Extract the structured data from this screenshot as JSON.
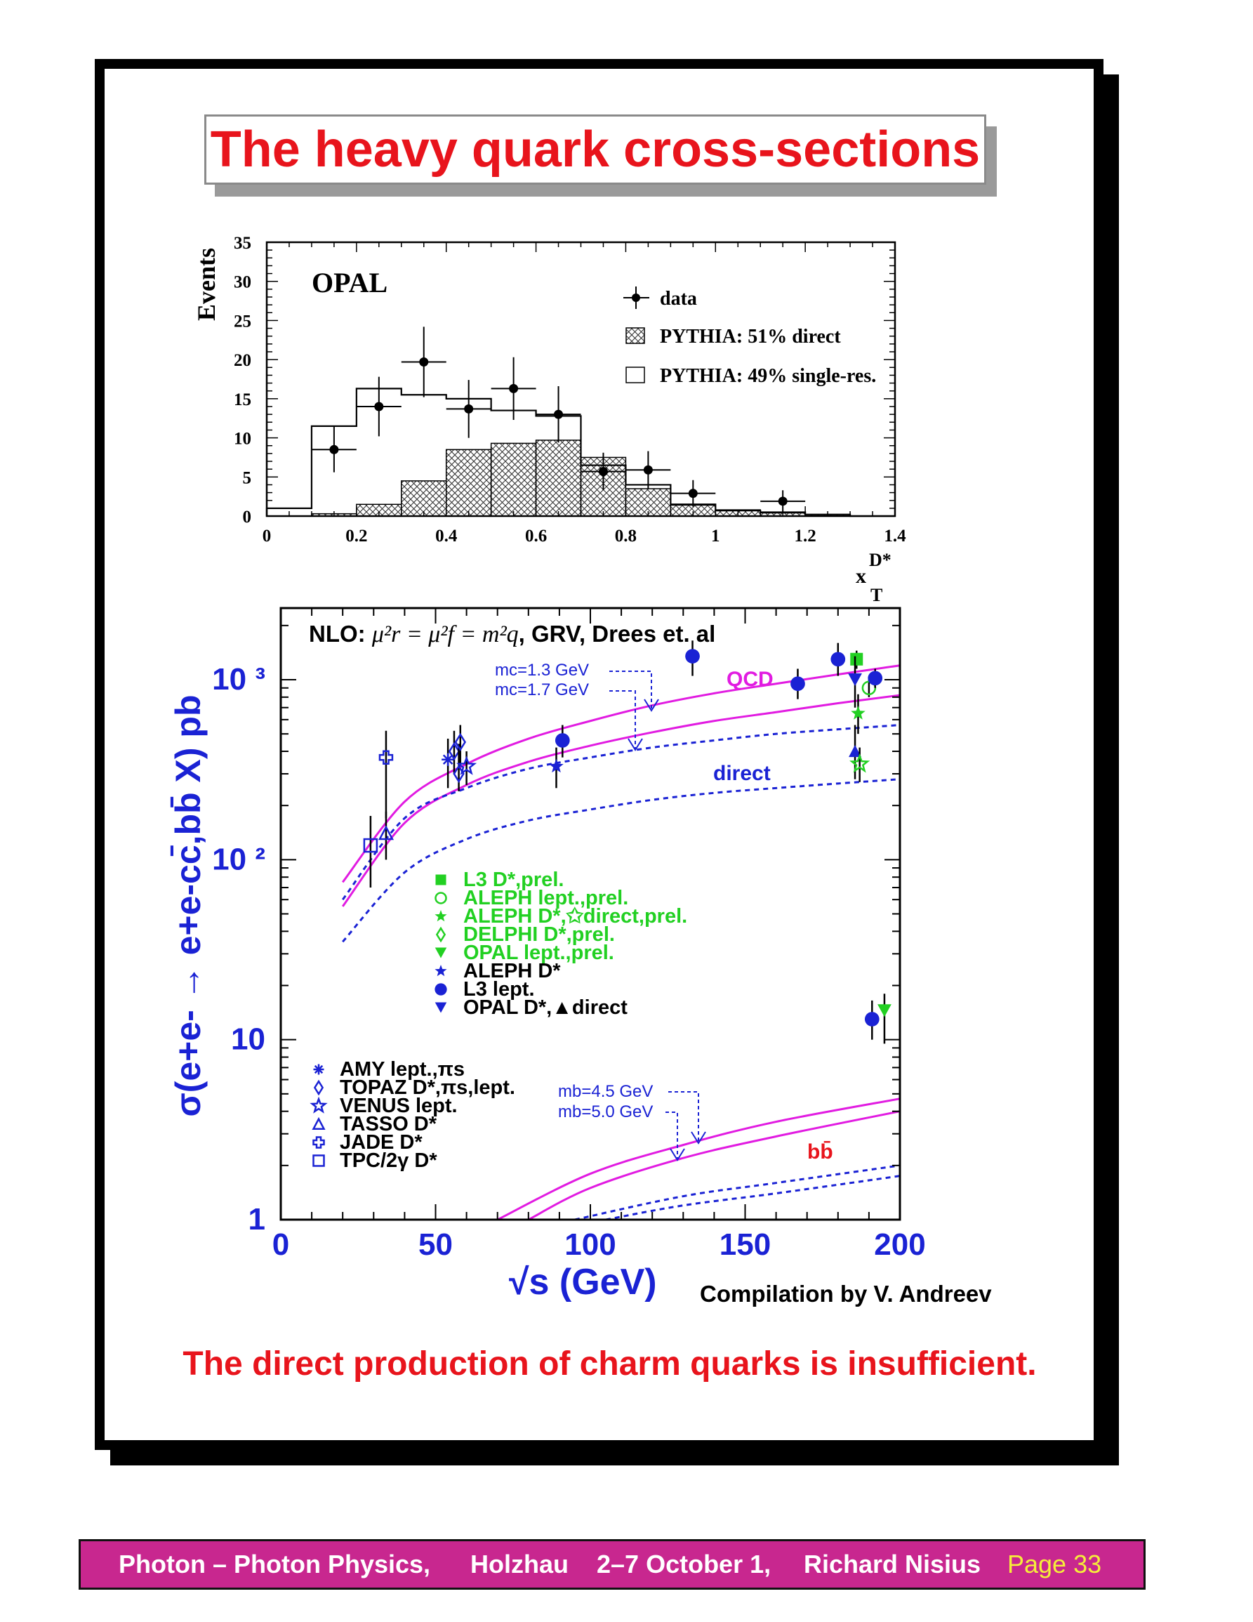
{
  "slide": {
    "title": "The heavy quark cross-sections",
    "conclusion": "The direct production of charm quarks is insufficient."
  },
  "footer": {
    "part1": "Photon – Photon Physics,",
    "part2": "Holzhau",
    "part3": "2–7 October 1,",
    "part4": "Richard Nisius",
    "page": "Page 33"
  },
  "colors": {
    "title_red": "#e8141c",
    "footer_bg": "#c8278f",
    "page_yellow": "#f5ee3a",
    "qcd_magenta": "#e11be1",
    "direct_blue": "#1a22d4",
    "green": "#22d022"
  },
  "chart_data": [
    {
      "type": "bar",
      "title": "OPAL",
      "xlabel": "x_T^D*",
      "ylabel": "Events",
      "xlim": [
        0,
        1.4
      ],
      "ylim": [
        0,
        35
      ],
      "x_ticks": [
        "0",
        "0.2",
        "0.4",
        "0.6",
        "0.8",
        "1",
        "1.2",
        "1.4"
      ],
      "y_ticks": [
        "0",
        "5",
        "10",
        "15",
        "20",
        "25",
        "30",
        "35"
      ],
      "legend": {
        "data": "data",
        "direct": "PYTHIA: 51% direct",
        "total": "PYTHIA: 49% single-res.",
        "position": "top-right"
      },
      "bin_edges": [
        0,
        0.1,
        0.2,
        0.3,
        0.4,
        0.5,
        0.6,
        0.7,
        0.8,
        0.9,
        1.0,
        1.1,
        1.2,
        1.3,
        1.4
      ],
      "series": [
        {
          "name": "PYTHIA: 51% direct",
          "style": "hatched",
          "values": [
            0,
            0.3,
            1.5,
            4.5,
            8.5,
            9.3,
            9.7,
            7.5,
            3.5,
            1.4,
            0.8,
            0.4,
            0.2,
            0
          ]
        },
        {
          "name": "PYTHIA: 49% single-res.",
          "style": "outline",
          "values": [
            1.0,
            11.5,
            16.3,
            15.5,
            15.0,
            13.5,
            12.8,
            6.5,
            4.0,
            1.5,
            0.7,
            0.5,
            0.2,
            0
          ]
        }
      ],
      "data_points": {
        "x": [
          0.15,
          0.25,
          0.35,
          0.45,
          0.55,
          0.65,
          0.75,
          0.85,
          0.95,
          1.15
        ],
        "y": [
          8.5,
          14.0,
          19.7,
          13.7,
          16.3,
          13.0,
          5.7,
          5.9,
          2.9,
          1.9
        ],
        "err": [
          2.9,
          3.8,
          4.5,
          3.7,
          4.0,
          3.6,
          2.4,
          2.4,
          1.7,
          1.4
        ]
      }
    },
    {
      "type": "scatter",
      "ylog": true,
      "xlabel": "√s (GeV)",
      "ylabel": "σ(e+e- → e+e-cc̄,bb̄ X) pb",
      "xlim": [
        0,
        200
      ],
      "ylim": [
        1,
        2500
      ],
      "x_ticks": [
        "0",
        "50",
        "100",
        "150",
        "200"
      ],
      "y_ticks": [
        "1",
        "10",
        "10 ²",
        "10 ³"
      ],
      "title_prefix": "NLO: ",
      "title_formula": "μ²r = μ²f = m²q",
      "title_suffix": ", GRV, Drees et. al",
      "credit": "Compilation by V. Andreev",
      "annotations": {
        "qcd": "QCD",
        "direct": "direct",
        "bb": "bb̄",
        "mc1": "mc=1.3 GeV",
        "mc2": "mc=1.7 GeV",
        "mb1": "mb=4.5 GeV",
        "mb2": "mb=5.0 GeV"
      },
      "curves": [
        {
          "name": "QCD mc=1.3",
          "style": "solid-magenta",
          "x": [
            20,
            40,
            60,
            80,
            100,
            120,
            140,
            160,
            180,
            200
          ],
          "y": [
            75,
            210,
            340,
            470,
            590,
            720,
            840,
            950,
            1070,
            1200
          ]
        },
        {
          "name": "QCD mc=1.7",
          "style": "solid-magenta",
          "x": [
            20,
            40,
            60,
            80,
            100,
            120,
            140,
            160,
            180,
            200
          ],
          "y": [
            55,
            160,
            260,
            350,
            430,
            510,
            590,
            660,
            740,
            820
          ]
        },
        {
          "name": "direct mc=1.3",
          "style": "dashed-blue",
          "x": [
            20,
            40,
            60,
            80,
            100,
            120,
            140,
            160,
            180,
            200
          ],
          "y": [
            60,
            170,
            250,
            320,
            370,
            420,
            460,
            500,
            530,
            560
          ]
        },
        {
          "name": "direct mc=1.7",
          "style": "dashed-blue",
          "x": [
            20,
            40,
            60,
            80,
            100,
            120,
            140,
            160,
            180,
            200
          ],
          "y": [
            35,
            85,
            130,
            165,
            190,
            215,
            235,
            250,
            265,
            280
          ]
        },
        {
          "name": "bb mb=4.5",
          "style": "solid-magenta",
          "x": [
            70,
            100,
            130,
            160,
            200
          ],
          "y": [
            1.0,
            1.8,
            2.6,
            3.5,
            4.7
          ]
        },
        {
          "name": "bb mb=5.0",
          "style": "solid-magenta",
          "x": [
            80,
            100,
            130,
            160,
            200
          ],
          "y": [
            1.0,
            1.5,
            2.2,
            2.9,
            4.0
          ]
        },
        {
          "name": "bb direct mb=4.5",
          "style": "dashed-blue",
          "x": [
            95,
            130,
            160,
            200
          ],
          "y": [
            1.0,
            1.35,
            1.6,
            2.0
          ]
        },
        {
          "name": "bb direct mb=5.0",
          "style": "dashed-blue",
          "x": [
            105,
            130,
            160,
            200
          ],
          "y": [
            1.0,
            1.2,
            1.4,
            1.75
          ]
        }
      ],
      "legend_lep": [
        {
          "marker": "sq-filled",
          "color": "#22d022",
          "label": "L3 D*,prel."
        },
        {
          "marker": "circ-open",
          "color": "#22d022",
          "label": "ALEPH lept.,prel."
        },
        {
          "marker": "star-filled",
          "color": "#22d022",
          "label": "ALEPH D*,✩direct,prel."
        },
        {
          "marker": "diam-open",
          "color": "#22d022",
          "label": "DELPHI D*,prel."
        },
        {
          "marker": "tri-down-filled",
          "color": "#22d022",
          "label": "OPAL lept.,prel."
        },
        {
          "marker": "star-filled",
          "color": "#1a22d4",
          "label": "ALEPH D*"
        },
        {
          "marker": "circ-filled",
          "color": "#1a22d4",
          "label": "L3 lept."
        },
        {
          "marker": "tri-down-filled",
          "color": "#1a22d4",
          "label": "OPAL D*,▲direct"
        }
      ],
      "legend_low": [
        {
          "marker": "asterisk",
          "label": "AMY lept.,πs"
        },
        {
          "marker": "diam-open",
          "label": "TOPAZ D*,πs,lept."
        },
        {
          "marker": "star-open",
          "label": "VENUS lept."
        },
        {
          "marker": "tri-open",
          "label": "TASSO D*"
        },
        {
          "marker": "cross-open",
          "label": "JADE D*"
        },
        {
          "marker": "sq-open",
          "label": "TPC/2γ D*"
        }
      ],
      "points": [
        {
          "x": 29,
          "y": 120,
          "lo": 70,
          "hi": 175,
          "marker": "sq-open",
          "color": "#1a22d4"
        },
        {
          "x": 34,
          "y": 140,
          "lo": 100,
          "hi": 185,
          "marker": "tri-open",
          "color": "#1a22d4"
        },
        {
          "x": 34,
          "y": 370,
          "lo": 170,
          "hi": 520,
          "marker": "cross-open",
          "color": "#1a22d4"
        },
        {
          "x": 54,
          "y": 360,
          "lo": 250,
          "hi": 470,
          "marker": "asterisk",
          "color": "#1a22d4"
        },
        {
          "x": 56,
          "y": 400,
          "lo": 300,
          "hi": 520,
          "marker": "diam-open",
          "color": "#1a22d4"
        },
        {
          "x": 57.5,
          "y": 300,
          "lo": 240,
          "hi": 440,
          "marker": "diam-open",
          "color": "#1a22d4"
        },
        {
          "x": 58,
          "y": 450,
          "lo": 330,
          "hi": 560,
          "marker": "diam-open",
          "color": "#1a22d4"
        },
        {
          "x": 60,
          "y": 330,
          "lo": 260,
          "hi": 400,
          "marker": "star-open",
          "color": "#1a22d4"
        },
        {
          "x": 89,
          "y": 330,
          "lo": 250,
          "hi": 420,
          "marker": "star-filled",
          "color": "#1a22d4"
        },
        {
          "x": 91,
          "y": 460,
          "lo": 370,
          "hi": 560,
          "marker": "circ-filled",
          "color": "#1a22d4"
        },
        {
          "x": 133,
          "y": 1350,
          "lo": 1050,
          "hi": 1650,
          "marker": "circ-filled",
          "color": "#1a22d4"
        },
        {
          "x": 167,
          "y": 950,
          "lo": 780,
          "hi": 1150,
          "marker": "circ-filled",
          "color": "#1a22d4"
        },
        {
          "x": 180,
          "y": 1300,
          "lo": 1050,
          "hi": 1600,
          "marker": "circ-filled",
          "color": "#1a22d4"
        },
        {
          "x": 186,
          "y": 1300,
          "lo": 1150,
          "hi": 1450,
          "marker": "sq-filled",
          "color": "#22d022"
        },
        {
          "x": 185.5,
          "y": 1000,
          "lo": 700,
          "hi": 1350,
          "marker": "tri-down-filled",
          "color": "#1a22d4"
        },
        {
          "x": 185.5,
          "y": 400,
          "lo": 280,
          "hi": 560,
          "marker": "tri-up-filled",
          "color": "#1a22d4"
        },
        {
          "x": 186.5,
          "y": 650,
          "lo": 500,
          "hi": 830,
          "marker": "star-filled",
          "color": "#22d022"
        },
        {
          "x": 187,
          "y": 340,
          "lo": 270,
          "hi": 420,
          "marker": "star-open",
          "color": "#22d022"
        },
        {
          "x": 190,
          "y": 900,
          "lo": 800,
          "hi": 1000,
          "marker": "circ-open",
          "color": "#22d022"
        },
        {
          "x": 191,
          "y": 13,
          "lo": 10,
          "hi": 16.5,
          "marker": "circ-filled",
          "color": "#1a22d4"
        },
        {
          "x": 192,
          "y": 1020,
          "lo": 900,
          "hi": 1150,
          "marker": "circ-filled",
          "color": "#1a22d4"
        },
        {
          "x": 195,
          "y": 14.5,
          "lo": 9.5,
          "hi": 18,
          "marker": "tri-down-filled",
          "color": "#22d022"
        }
      ]
    }
  ]
}
